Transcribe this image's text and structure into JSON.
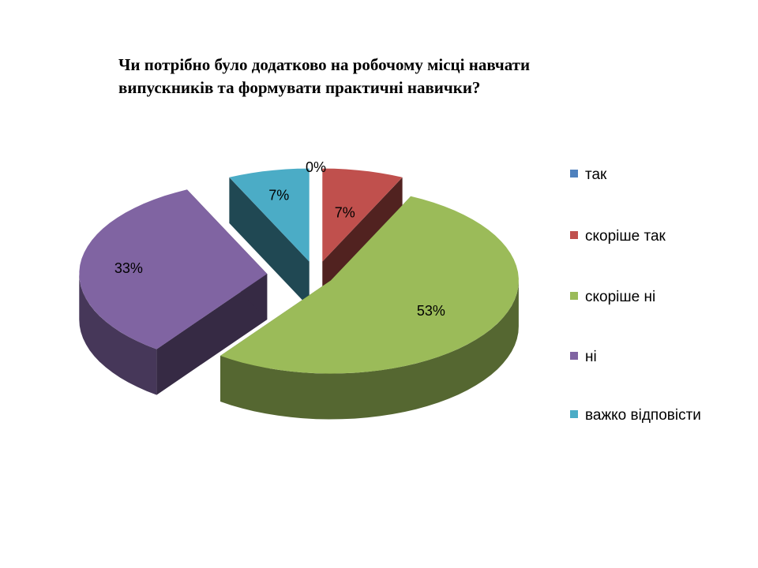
{
  "title": {
    "line1": "Чи потрібно було додатково  на робочому місці навчати",
    "line2": "випускників та формувати практичні навички?"
  },
  "chart_data": {
    "type": "pie",
    "style": "3d-exploded",
    "legend_position": "right",
    "slices": [
      {
        "label": "так",
        "value": 0,
        "data_label": "0%",
        "color": "#4F81BD"
      },
      {
        "label": "скоріше так",
        "value": 7,
        "data_label": "7%",
        "color": "#C0504D"
      },
      {
        "label": "скоріше ні",
        "value": 53,
        "data_label": "53%",
        "color": "#9BBB59"
      },
      {
        "label": "ні",
        "value": 33,
        "data_label": "33%",
        "color": "#8064A2"
      },
      {
        "label": "важко відповісти",
        "value": 7,
        "data_label": "7%",
        "color": "#4BACC6"
      }
    ]
  },
  "legend": {
    "items": [
      {
        "label": "так",
        "color": "#4F81BD"
      },
      {
        "label": "скоріше так",
        "color": "#C0504D"
      },
      {
        "label": "скоріше ні",
        "color": "#9BBB59"
      },
      {
        "label": "ні",
        "color": "#8064A2"
      },
      {
        "label": "важко відповісти",
        "color": "#4BACC6"
      }
    ]
  }
}
